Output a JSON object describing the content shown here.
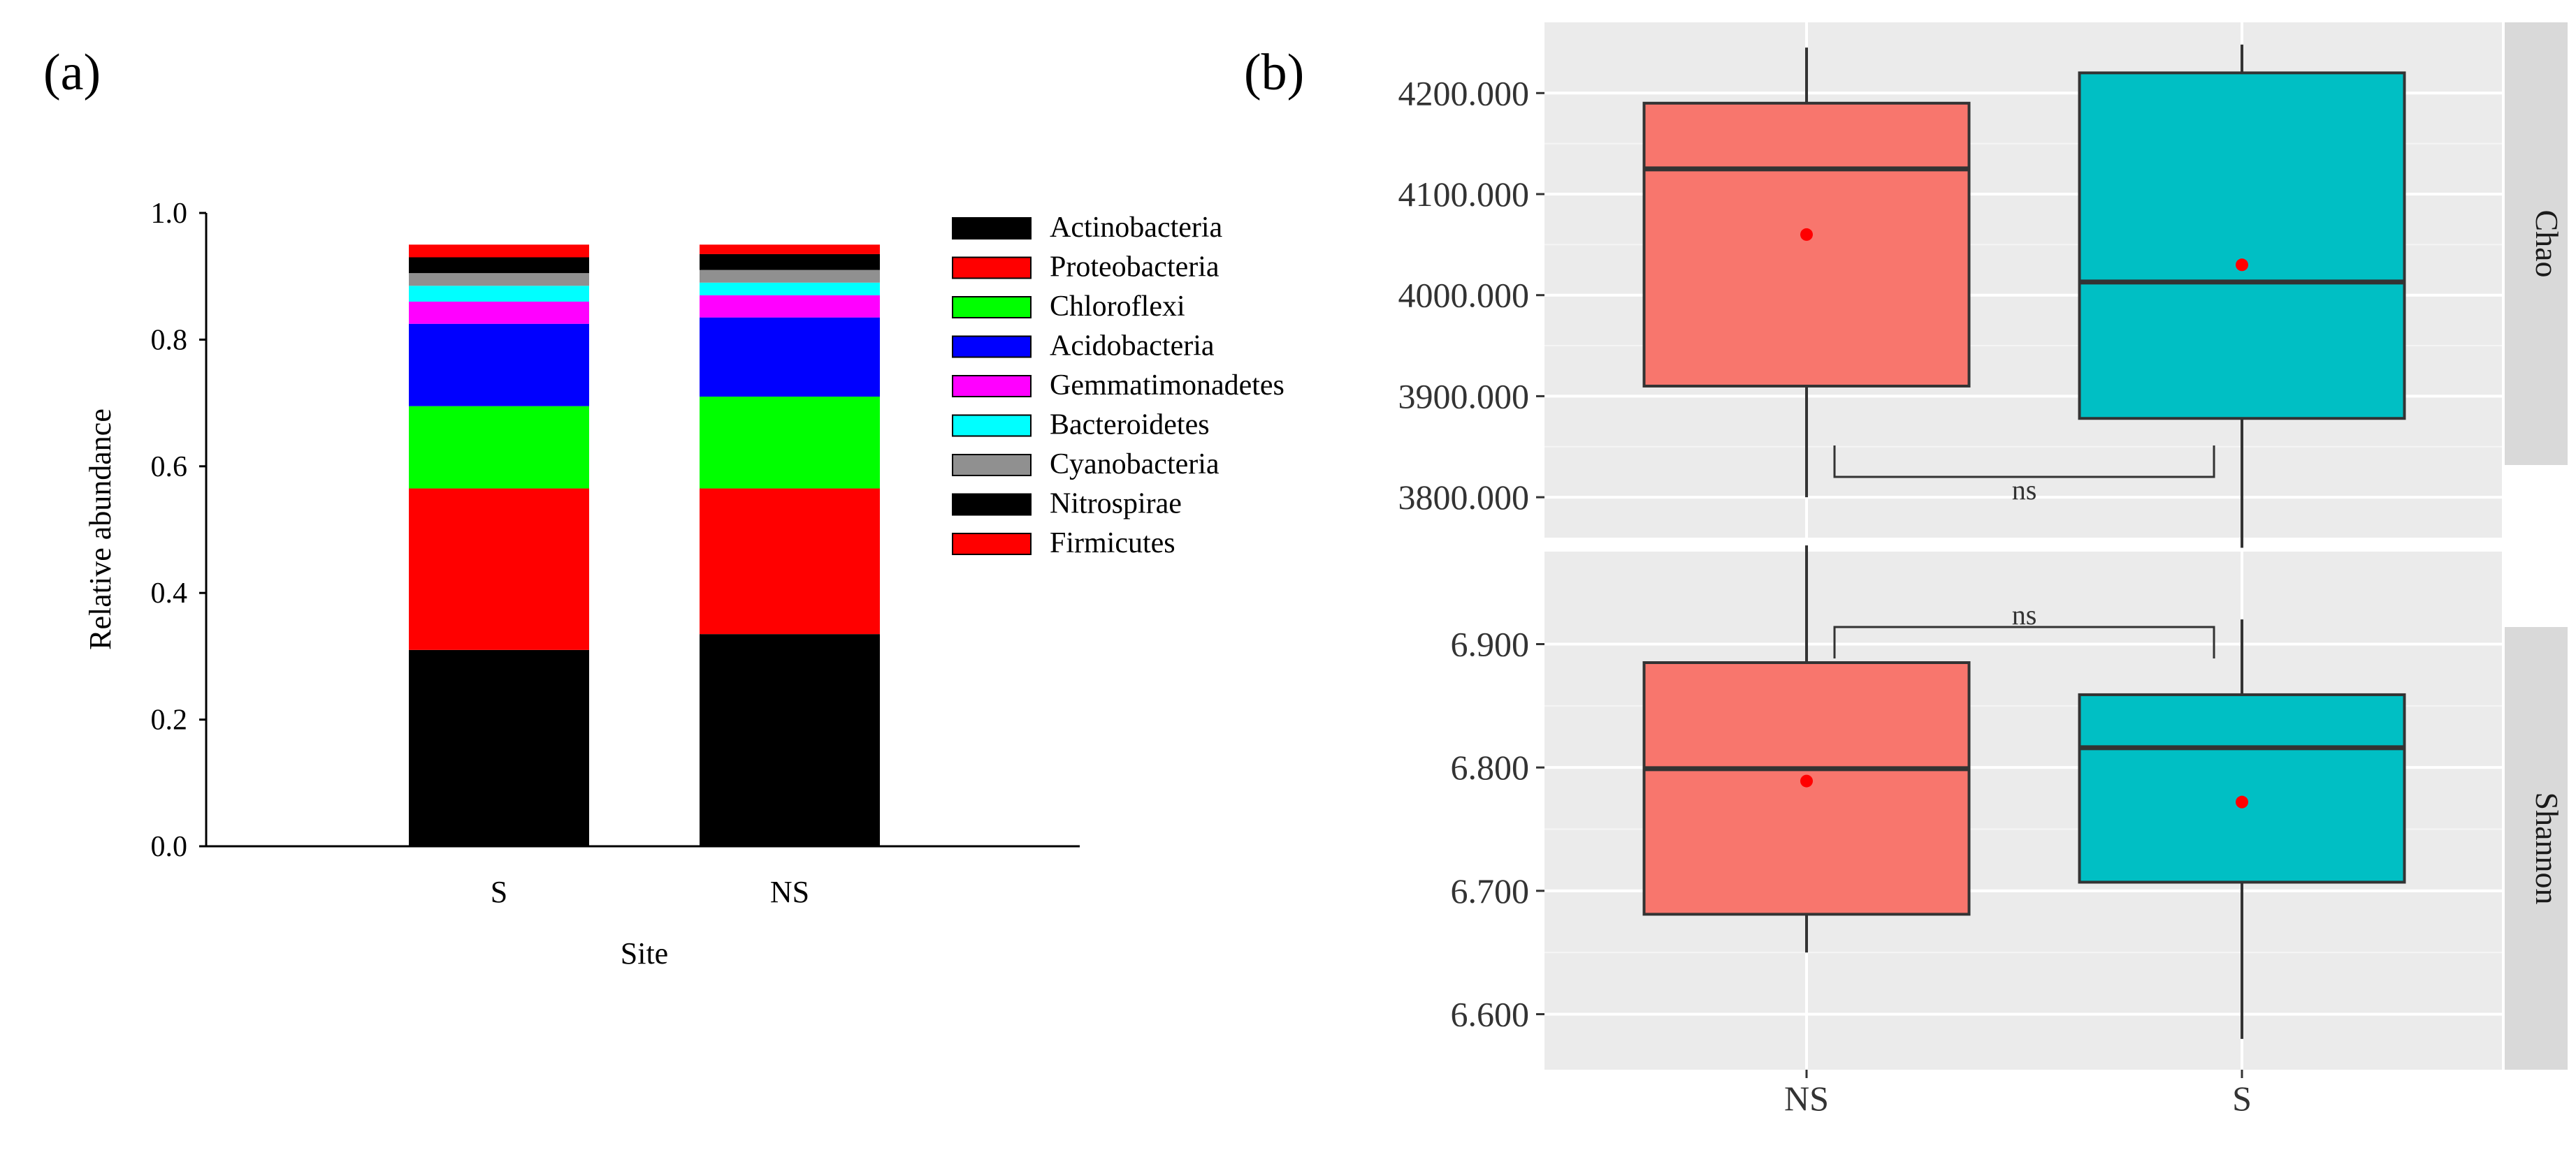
{
  "chart_data": [
    {
      "panel_label": "(a)",
      "type": "bar",
      "stacked": true,
      "categories": [
        "S",
        "NS"
      ],
      "xlabel": "Site",
      "ylabel": "Relative abundance",
      "ylim": [
        0,
        1.0
      ],
      "yticks": [
        "0.0",
        "0.2",
        "0.4",
        "0.6",
        "0.8",
        "1.0"
      ],
      "legend_position": "right",
      "series": [
        {
          "name": "Actinobacteria",
          "color": "#000000",
          "values": [
            0.31,
            0.335
          ]
        },
        {
          "name": "Proteobacteria",
          "color": "#ff0000",
          "values": [
            0.255,
            0.23
          ]
        },
        {
          "name": "Chloroflexi",
          "color": "#00ff00",
          "values": [
            0.13,
            0.145
          ]
        },
        {
          "name": "Acidobacteria",
          "color": "#0000ff",
          "values": [
            0.13,
            0.125
          ]
        },
        {
          "name": "Gemmatimonadetes",
          "color": "#ff00ff",
          "values": [
            0.035,
            0.035
          ]
        },
        {
          "name": "Bacteroidetes",
          "color": "#00ffff",
          "values": [
            0.025,
            0.02
          ]
        },
        {
          "name": "Cyanobacteria",
          "color": "#909090",
          "values": [
            0.02,
            0.02
          ]
        },
        {
          "name": "Nitrospirae",
          "color": "#000000",
          "values": [
            0.025,
            0.025
          ]
        },
        {
          "name": "Firmicutes",
          "color": "#ff0000",
          "values": [
            0.02,
            0.015
          ]
        }
      ]
    },
    {
      "panel_label": "(b)",
      "type": "box",
      "categories": [
        "NS",
        "S"
      ],
      "colors": {
        "NS": "#f8766d",
        "S": "#00bfc4",
        "mean_point": "#ff0000",
        "panel_bg": "#ebebeb",
        "strip_bg": "#d9d9d9"
      },
      "panels": [
        {
          "strip": "Chao",
          "ylim": [
            3760,
            4270
          ],
          "yticks": [
            3800,
            3900,
            4000,
            4100,
            4200
          ],
          "ytick_labels": [
            "3800.000",
            "3900.000",
            "4000.000",
            "4100.000",
            "4200.000"
          ],
          "significance": "ns",
          "boxes": [
            {
              "category": "NS",
              "whisker_low": 3800,
              "q1": 3910,
              "median": 4125,
              "q3": 4190,
              "whisker_high": 4245,
              "mean": 4060
            },
            {
              "category": "S",
              "whisker_low": 3750,
              "q1": 3878,
              "median": 4013,
              "q3": 4220,
              "whisker_high": 4248,
              "mean": 4030
            }
          ]
        },
        {
          "strip": "Shannon",
          "ylim": [
            6.555,
            6.975
          ],
          "yticks": [
            6.6,
            6.7,
            6.8,
            6.9
          ],
          "ytick_labels": [
            "6.600",
            "6.700",
            "6.800",
            "6.900"
          ],
          "significance": "ns",
          "boxes": [
            {
              "category": "NS",
              "whisker_low": 6.65,
              "q1": 6.681,
              "median": 6.799,
              "q3": 6.885,
              "whisker_high": 6.98,
              "mean": 6.789
            },
            {
              "category": "S",
              "whisker_low": 6.58,
              "q1": 6.707,
              "median": 6.816,
              "q3": 6.859,
              "whisker_high": 6.92,
              "mean": 6.772
            }
          ]
        }
      ]
    }
  ]
}
